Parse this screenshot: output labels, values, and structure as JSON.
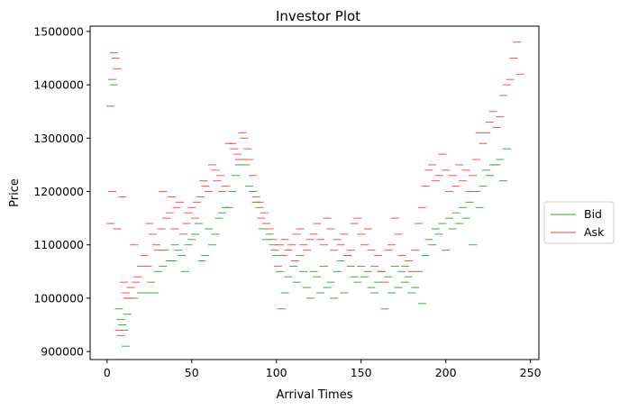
{
  "chart_data": {
    "type": "scatter",
    "title": "Investor Plot",
    "xlabel": "Arrival Times",
    "ylabel": "Price",
    "xlim": [
      -10,
      255
    ],
    "ylim": [
      885000,
      1510000
    ],
    "xticks": [
      0,
      50,
      100,
      150,
      200,
      250
    ],
    "yticks": [
      900000,
      1000000,
      1100000,
      1200000,
      1300000,
      1400000,
      1500000
    ],
    "grid": false,
    "legend_position": "outside-right",
    "colors": {
      "Bid": "#2ca02c",
      "Ask": "#ff3b3b"
    },
    "series": [
      {
        "name": "Bid",
        "marker": "dash",
        "points": [
          [
            2,
            1360000
          ],
          [
            3,
            1410000
          ],
          [
            4,
            1400000
          ],
          [
            7,
            980000
          ],
          [
            8,
            960000
          ],
          [
            9,
            950000
          ],
          [
            10,
            940000
          ],
          [
            11,
            910000
          ],
          [
            12,
            970000
          ],
          [
            16,
            1000000
          ],
          [
            20,
            1010000
          ],
          [
            24,
            1010000
          ],
          [
            26,
            1030000
          ],
          [
            28,
            1010000
          ],
          [
            30,
            1050000
          ],
          [
            33,
            1060000
          ],
          [
            34,
            1090000
          ],
          [
            37,
            1070000
          ],
          [
            39,
            1070000
          ],
          [
            40,
            1100000
          ],
          [
            42,
            1090000
          ],
          [
            44,
            1080000
          ],
          [
            46,
            1050000
          ],
          [
            48,
            1100000
          ],
          [
            50,
            1110000
          ],
          [
            52,
            1120000
          ],
          [
            54,
            1140000
          ],
          [
            56,
            1070000
          ],
          [
            58,
            1080000
          ],
          [
            60,
            1130000
          ],
          [
            62,
            1100000
          ],
          [
            64,
            1120000
          ],
          [
            66,
            1150000
          ],
          [
            68,
            1160000
          ],
          [
            70,
            1170000
          ],
          [
            72,
            1170000
          ],
          [
            74,
            1200000
          ],
          [
            76,
            1230000
          ],
          [
            78,
            1250000
          ],
          [
            80,
            1260000
          ],
          [
            82,
            1250000
          ],
          [
            84,
            1210000
          ],
          [
            86,
            1200000
          ],
          [
            88,
            1180000
          ],
          [
            90,
            1170000
          ],
          [
            92,
            1130000
          ],
          [
            94,
            1110000
          ],
          [
            96,
            1120000
          ],
          [
            98,
            1100000
          ],
          [
            100,
            1080000
          ],
          [
            102,
            1050000
          ],
          [
            103,
            980000
          ],
          [
            105,
            1010000
          ],
          [
            107,
            1040000
          ],
          [
            110,
            1060000
          ],
          [
            112,
            1030000
          ],
          [
            114,
            1080000
          ],
          [
            116,
            1050000
          ],
          [
            118,
            1020000
          ],
          [
            120,
            1000000
          ],
          [
            122,
            1050000
          ],
          [
            124,
            1040000
          ],
          [
            126,
            1010000
          ],
          [
            128,
            1060000
          ],
          [
            130,
            1020000
          ],
          [
            132,
            1030000
          ],
          [
            134,
            1000000
          ],
          [
            136,
            1050000
          ],
          [
            138,
            1070000
          ],
          [
            140,
            1010000
          ],
          [
            142,
            1080000
          ],
          [
            144,
            1060000
          ],
          [
            146,
            1040000
          ],
          [
            148,
            1030000
          ],
          [
            150,
            1060000
          ],
          [
            152,
            1040000
          ],
          [
            154,
            1050000
          ],
          [
            156,
            1020000
          ],
          [
            158,
            1010000
          ],
          [
            160,
            1030000
          ],
          [
            162,
            1050000
          ],
          [
            164,
            980000
          ],
          [
            166,
            1040000
          ],
          [
            168,
            1010000
          ],
          [
            170,
            1060000
          ],
          [
            172,
            1020000
          ],
          [
            174,
            1050000
          ],
          [
            176,
            1030000
          ],
          [
            178,
            1040000
          ],
          [
            180,
            1010000
          ],
          [
            182,
            1020000
          ],
          [
            184,
            1050000
          ],
          [
            186,
            990000
          ],
          [
            188,
            1080000
          ],
          [
            190,
            1110000
          ],
          [
            192,
            1100000
          ],
          [
            194,
            1130000
          ],
          [
            196,
            1120000
          ],
          [
            198,
            1140000
          ],
          [
            200,
            1090000
          ],
          [
            202,
            1150000
          ],
          [
            204,
            1130000
          ],
          [
            206,
            1160000
          ],
          [
            208,
            1140000
          ],
          [
            210,
            1170000
          ],
          [
            212,
            1150000
          ],
          [
            214,
            1180000
          ],
          [
            216,
            1100000
          ],
          [
            218,
            1200000
          ],
          [
            220,
            1170000
          ],
          [
            222,
            1210000
          ],
          [
            224,
            1240000
          ],
          [
            226,
            1230000
          ],
          [
            228,
            1250000
          ],
          [
            230,
            1250000
          ],
          [
            232,
            1260000
          ],
          [
            234,
            1220000
          ],
          [
            236,
            1280000
          ]
        ]
      },
      {
        "name": "Ask",
        "marker": "dash",
        "points": [
          [
            2,
            1140000
          ],
          [
            3,
            1200000
          ],
          [
            4,
            1460000
          ],
          [
            5,
            1450000
          ],
          [
            6,
            1430000
          ],
          [
            6,
            1130000
          ],
          [
            7,
            940000
          ],
          [
            8,
            930000
          ],
          [
            9,
            1190000
          ],
          [
            10,
            1030000
          ],
          [
            11,
            1010000
          ],
          [
            12,
            1000000
          ],
          [
            13,
            1000000
          ],
          [
            14,
            1020000
          ],
          [
            16,
            1100000
          ],
          [
            17,
            1030000
          ],
          [
            18,
            1040000
          ],
          [
            20,
            1060000
          ],
          [
            22,
            1080000
          ],
          [
            24,
            1060000
          ],
          [
            25,
            1140000
          ],
          [
            27,
            1120000
          ],
          [
            29,
            1100000
          ],
          [
            30,
            1090000
          ],
          [
            32,
            1130000
          ],
          [
            33,
            1200000
          ],
          [
            35,
            1150000
          ],
          [
            37,
            1160000
          ],
          [
            38,
            1190000
          ],
          [
            40,
            1130000
          ],
          [
            41,
            1170000
          ],
          [
            43,
            1180000
          ],
          [
            45,
            1120000
          ],
          [
            47,
            1140000
          ],
          [
            48,
            1160000
          ],
          [
            50,
            1170000
          ],
          [
            52,
            1150000
          ],
          [
            53,
            1180000
          ],
          [
            55,
            1190000
          ],
          [
            57,
            1220000
          ],
          [
            58,
            1210000
          ],
          [
            60,
            1200000
          ],
          [
            62,
            1250000
          ],
          [
            64,
            1240000
          ],
          [
            65,
            1220000
          ],
          [
            67,
            1230000
          ],
          [
            68,
            1200000
          ],
          [
            70,
            1210000
          ],
          [
            72,
            1290000
          ],
          [
            74,
            1290000
          ],
          [
            75,
            1280000
          ],
          [
            77,
            1270000
          ],
          [
            78,
            1260000
          ],
          [
            80,
            1310000
          ],
          [
            81,
            1300000
          ],
          [
            83,
            1280000
          ],
          [
            84,
            1260000
          ],
          [
            86,
            1230000
          ],
          [
            88,
            1190000
          ],
          [
            90,
            1180000
          ],
          [
            91,
            1150000
          ],
          [
            93,
            1160000
          ],
          [
            94,
            1140000
          ],
          [
            96,
            1130000
          ],
          [
            98,
            1110000
          ],
          [
            99,
            1090000
          ],
          [
            101,
            1060000
          ],
          [
            102,
            1100000
          ],
          [
            104,
            1080000
          ],
          [
            105,
            1110000
          ],
          [
            107,
            1090000
          ],
          [
            109,
            1100000
          ],
          [
            111,
            1070000
          ],
          [
            112,
            1120000
          ],
          [
            114,
            1130000
          ],
          [
            116,
            1100000
          ],
          [
            118,
            1090000
          ],
          [
            120,
            1110000
          ],
          [
            122,
            1120000
          ],
          [
            124,
            1140000
          ],
          [
            126,
            1110000
          ],
          [
            128,
            1100000
          ],
          [
            130,
            1150000
          ],
          [
            132,
            1130000
          ],
          [
            134,
            1090000
          ],
          [
            136,
            1110000
          ],
          [
            138,
            1100000
          ],
          [
            140,
            1120000
          ],
          [
            142,
            1080000
          ],
          [
            144,
            1090000
          ],
          [
            146,
            1140000
          ],
          [
            148,
            1150000
          ],
          [
            150,
            1120000
          ],
          [
            152,
            1100000
          ],
          [
            154,
            1130000
          ],
          [
            156,
            1090000
          ],
          [
            158,
            1060000
          ],
          [
            160,
            1080000
          ],
          [
            162,
            1050000
          ],
          [
            164,
            1030000
          ],
          [
            166,
            1090000
          ],
          [
            168,
            1100000
          ],
          [
            170,
            1150000
          ],
          [
            172,
            1120000
          ],
          [
            174,
            1080000
          ],
          [
            176,
            1060000
          ],
          [
            178,
            1070000
          ],
          [
            180,
            1050000
          ],
          [
            182,
            1090000
          ],
          [
            184,
            1140000
          ],
          [
            186,
            1170000
          ],
          [
            188,
            1210000
          ],
          [
            190,
            1240000
          ],
          [
            192,
            1250000
          ],
          [
            194,
            1220000
          ],
          [
            196,
            1230000
          ],
          [
            198,
            1270000
          ],
          [
            200,
            1240000
          ],
          [
            202,
            1200000
          ],
          [
            204,
            1230000
          ],
          [
            206,
            1210000
          ],
          [
            208,
            1250000
          ],
          [
            210,
            1220000
          ],
          [
            212,
            1240000
          ],
          [
            214,
            1200000
          ],
          [
            216,
            1230000
          ],
          [
            218,
            1260000
          ],
          [
            220,
            1310000
          ],
          [
            222,
            1290000
          ],
          [
            224,
            1310000
          ],
          [
            226,
            1330000
          ],
          [
            228,
            1350000
          ],
          [
            230,
            1320000
          ],
          [
            232,
            1340000
          ],
          [
            234,
            1380000
          ],
          [
            236,
            1400000
          ],
          [
            238,
            1410000
          ],
          [
            240,
            1450000
          ],
          [
            242,
            1480000
          ],
          [
            244,
            1420000
          ]
        ]
      }
    ]
  }
}
